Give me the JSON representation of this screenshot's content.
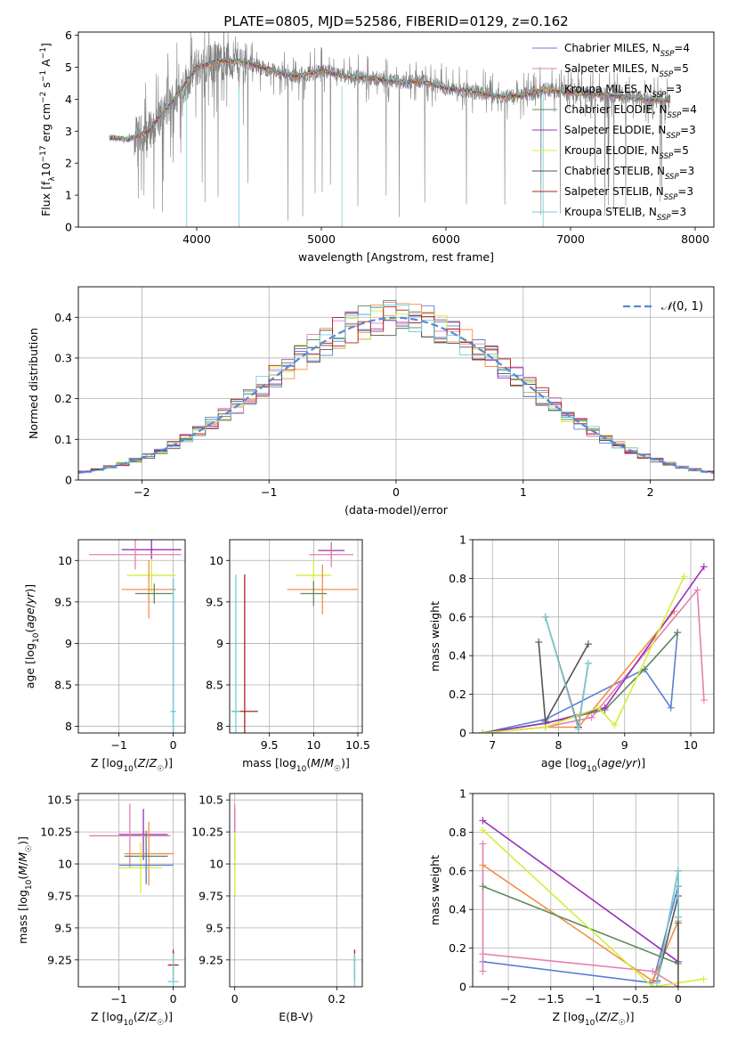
{
  "figure": {
    "title": "PLATE=0805, MJD=52586, FIBERID=0129, z=0.162"
  },
  "chart_data": [
    {
      "id": "spectrum",
      "type": "line",
      "xlabel": "wavelength [Angstrom, rest frame]",
      "ylabel": "Flux [f_λ 10^-17 erg cm^-2 s^-1 A^-1]",
      "xlim": [
        3050,
        8150
      ],
      "ylim": [
        0,
        6.1
      ],
      "xticks": [
        4000,
        5000,
        6000,
        7000,
        8000
      ],
      "yticks": [
        0,
        1,
        2,
        3,
        4,
        5,
        6
      ],
      "grid": false,
      "legend_position": "top-right",
      "data_envelope": {
        "x": [
          3300,
          3450,
          3600,
          3800,
          4000,
          4200,
          4400,
          4600,
          4800,
          5000,
          5200,
          5400,
          5600,
          5800,
          6000,
          6200,
          6400,
          6600,
          6800,
          7000,
          7200,
          7400,
          7600,
          7800
        ],
        "y": [
          2.8,
          2.75,
          2.95,
          3.9,
          5.0,
          5.2,
          5.15,
          4.9,
          4.7,
          4.9,
          4.7,
          4.65,
          4.55,
          4.55,
          4.35,
          4.25,
          4.1,
          4.1,
          4.3,
          4.2,
          4.15,
          4.1,
          4.0,
          3.95
        ]
      },
      "series": [
        {
          "name": "Chabrier MILES, N_SSP=4",
          "color": "#5b7fd6"
        },
        {
          "name": "Salpeter MILES, N_SSP=5",
          "color": "#e57fb0"
        },
        {
          "name": "Kroupa MILES, N_SSP=3",
          "color": "#f58d4a"
        },
        {
          "name": "Chabrier ELODIE, N_SSP=4",
          "color": "#5f8a5f"
        },
        {
          "name": "Salpeter ELODIE, N_SSP=3",
          "color": "#9b30b5"
        },
        {
          "name": "Kroupa ELODIE, N_SSP=5",
          "color": "#d4ee3a"
        },
        {
          "name": "Chabrier STELIB, N_SSP=3",
          "color": "#555555"
        },
        {
          "name": "Salpeter STELIB, N_SSP=3",
          "color": "#b22020"
        },
        {
          "name": "Kroupa STELIB, N_SSP=3",
          "color": "#6fd0d8"
        }
      ],
      "data_color": "#808080"
    },
    {
      "id": "residuals",
      "type": "histogram",
      "xlabel": "(data-model)/error",
      "ylabel": "Normed distribution",
      "xlim": [
        -2.5,
        2.5
      ],
      "ylim": [
        0,
        0.475
      ],
      "xticks": [
        -2,
        -1,
        0,
        1,
        2
      ],
      "yticks": [
        0.0,
        0.1,
        0.2,
        0.3,
        0.4
      ],
      "grid": true,
      "legend_position": "top-right",
      "reference_curve": {
        "name": "N(0,1)",
        "color": "#5b87d6",
        "style": "dashed"
      },
      "bins": {
        "start": -2.5,
        "width": 0.1,
        "count": 50
      },
      "series_colors": [
        "#5b7fd6",
        "#e57fb0",
        "#f58d4a",
        "#5f8a5f",
        "#9b30b5",
        "#d4ee3a",
        "#555555",
        "#b22020",
        "#6fd0d8"
      ]
    },
    {
      "id": "age-vs-Z",
      "type": "errorbar",
      "xlabel": "Z [log10(Z/Z☉)]",
      "ylabel": "age [log10(age/yr)]",
      "xlim": [
        -1.75,
        0.22
      ],
      "ylim": [
        7.92,
        10.25
      ],
      "xticks": [
        -1,
        0
      ],
      "yticks": [
        8.0,
        8.5,
        9.0,
        9.5,
        10.0
      ],
      "grid": true,
      "points": [
        {
          "x": -0.4,
          "xerr": 0.55,
          "y": 10.13,
          "yerr": 0.12,
          "color": "#9b30b5"
        },
        {
          "x": -0.7,
          "xerr": 0.85,
          "y": 10.07,
          "yerr": 0.18,
          "color": "#e57fb0"
        },
        {
          "x": -0.4,
          "xerr": 0.45,
          "y": 9.82,
          "yerr": 0.2,
          "color": "#d4ee3a"
        },
        {
          "x": -0.45,
          "xerr": 0.5,
          "y": 9.65,
          "yerr": 0.35,
          "color": "#f58d4a"
        },
        {
          "x": -0.35,
          "xerr": 0.35,
          "y": 9.6,
          "yerr": 0.12,
          "color": "#5f8a5f"
        },
        {
          "x": 0.0,
          "xerr": 0.04,
          "y": 8.18,
          "yerr": 1.6,
          "color": "#5b7fd6"
        },
        {
          "x": 0.0,
          "xerr": 0.05,
          "y": 8.18,
          "yerr": 1.6,
          "color": "#6fd0d8"
        }
      ]
    },
    {
      "id": "age-vs-mass",
      "type": "errorbar",
      "xlabel": "mass [log10(M/M☉)]",
      "ylabel": "",
      "xlim": [
        9.05,
        10.55
      ],
      "ylim": [
        7.92,
        10.25
      ],
      "xticks": [
        9.5,
        10.0,
        10.5
      ],
      "yticks": [
        8.0,
        8.5,
        9.0,
        9.5,
        10.0
      ],
      "grid": true,
      "points": [
        {
          "x": 10.2,
          "xerr": 0.15,
          "y": 10.12,
          "yerr": 0.1,
          "color": "#9b30b5"
        },
        {
          "x": 10.2,
          "xerr": 0.25,
          "y": 10.07,
          "yerr": 0.15,
          "color": "#e57fb0"
        },
        {
          "x": 10.0,
          "xerr": 0.2,
          "y": 9.82,
          "yerr": 0.2,
          "color": "#d4ee3a"
        },
        {
          "x": 10.1,
          "xerr": 0.4,
          "y": 9.65,
          "yerr": 0.3,
          "color": "#f58d4a"
        },
        {
          "x": 10.0,
          "xerr": 0.15,
          "y": 9.6,
          "yerr": 0.15,
          "color": "#5f8a5f"
        },
        {
          "x": 9.22,
          "xerr": 0.15,
          "y": 8.18,
          "yerr": 1.65,
          "color": "#b22020"
        },
        {
          "x": 9.12,
          "xerr": 0.05,
          "y": 8.18,
          "yerr": 1.65,
          "color": "#6fd0d8"
        }
      ]
    },
    {
      "id": "weight-vs-age",
      "type": "line",
      "xlabel": "age [log10(age/yr)]",
      "ylabel": "mass weight",
      "xlim": [
        6.7,
        10.35
      ],
      "ylim": [
        0,
        1.0
      ],
      "xticks": [
        7,
        8,
        9,
        10
      ],
      "yticks": [
        0.0,
        0.2,
        0.4,
        0.6,
        0.8,
        1.0
      ],
      "grid": true,
      "series": [
        {
          "color": "#5b7fd6",
          "x": [
            6.85,
            7.8,
            9.3,
            9.7,
            9.8
          ],
          "y": [
            0.0,
            0.07,
            0.33,
            0.13,
            0.52
          ]
        },
        {
          "color": "#e57fb0",
          "x": [
            6.85,
            7.8,
            8.5,
            10.1,
            10.2
          ],
          "y": [
            0.0,
            0.03,
            0.08,
            0.74,
            0.17
          ]
        },
        {
          "color": "#f58d4a",
          "x": [
            6.85,
            7.8,
            8.3,
            9.75
          ],
          "y": [
            0.0,
            0.03,
            0.03,
            0.63
          ]
        },
        {
          "color": "#5f8a5f",
          "x": [
            6.85,
            7.8,
            8.7,
            9.3,
            9.8
          ],
          "y": [
            0.0,
            0.05,
            0.12,
            0.33,
            0.52
          ]
        },
        {
          "color": "#9b30b5",
          "x": [
            6.85,
            7.8,
            8.7,
            10.2
          ],
          "y": [
            0.0,
            0.05,
            0.13,
            0.86
          ]
        },
        {
          "color": "#d4ee3a",
          "x": [
            6.85,
            7.8,
            8.6,
            8.85,
            9.9
          ],
          "y": [
            0.0,
            0.03,
            0.13,
            0.04,
            0.81
          ]
        },
        {
          "color": "#555555",
          "x": [
            7.7,
            7.8,
            8.45
          ],
          "y": [
            0.47,
            0.06,
            0.46
          ]
        },
        {
          "color": "#b22020",
          "x": [
            7.8,
            8.3,
            8.45
          ],
          "y": [
            0.6,
            0.03,
            0.36
          ]
        },
        {
          "color": "#6fd0d8",
          "x": [
            7.8,
            8.3,
            8.45
          ],
          "y": [
            0.6,
            0.02,
            0.36
          ]
        }
      ]
    },
    {
      "id": "mass-vs-Z",
      "type": "errorbar",
      "xlabel": "Z [log10(Z/Z☉)]",
      "ylabel": "mass [log10(M/M☉)]",
      "xlim": [
        -1.75,
        0.22
      ],
      "ylim": [
        9.04,
        10.55
      ],
      "xticks": [
        -1,
        0
      ],
      "yticks": [
        9.25,
        9.5,
        9.75,
        10.0,
        10.25,
        10.5
      ],
      "grid": true,
      "points": [
        {
          "x": -0.55,
          "xerr": 0.45,
          "y": 10.23,
          "yerr": 0.2,
          "color": "#9b30b5"
        },
        {
          "x": -0.8,
          "xerr": 0.75,
          "y": 10.22,
          "yerr": 0.25,
          "color": "#e57fb0"
        },
        {
          "x": -0.45,
          "xerr": 0.45,
          "y": 10.08,
          "yerr": 0.25,
          "color": "#f58d4a"
        },
        {
          "x": -0.5,
          "xerr": 0.4,
          "y": 10.06,
          "yerr": 0.2,
          "color": "#5f8a5f"
        },
        {
          "x": -0.6,
          "xerr": 0.4,
          "y": 9.97,
          "yerr": 0.2,
          "color": "#d4ee3a"
        },
        {
          "x": -0.5,
          "xerr": 0.5,
          "y": 9.99,
          "yerr": 0.15,
          "color": "#5b7fd6"
        },
        {
          "x": 0.0,
          "xerr": 0.1,
          "y": 9.21,
          "yerr": 0.12,
          "color": "#b22020"
        },
        {
          "x": 0.0,
          "xerr": 0.1,
          "y": 9.08,
          "yerr": 0.22,
          "color": "#6fd0d8"
        }
      ]
    },
    {
      "id": "mass-vs-EBV",
      "type": "errorbar",
      "xlabel": "E(B-V)",
      "ylabel": "",
      "xlim": [
        -0.01,
        0.25
      ],
      "ylim": [
        9.04,
        10.55
      ],
      "xticks": [
        0.0,
        0.2
      ],
      "yticks": [
        9.25,
        9.5,
        9.75,
        10.0,
        10.25,
        10.5
      ],
      "grid": true,
      "points": [
        {
          "x": 0.0,
          "xerr": 0.0,
          "y": 10.23,
          "yerr": 0.2,
          "color": "#9b30b5"
        },
        {
          "x": 0.0,
          "xerr": 0.0,
          "y": 10.22,
          "yerr": 0.25,
          "color": "#e57fb0"
        },
        {
          "x": 0.0,
          "xerr": 0.0,
          "y": 10.0,
          "yerr": 0.25,
          "color": "#d4ee3a"
        },
        {
          "x": 0.235,
          "xerr": 0.0,
          "y": 9.21,
          "yerr": 0.12,
          "color": "#b22020"
        },
        {
          "x": 0.235,
          "xerr": 0.0,
          "y": 9.08,
          "yerr": 0.22,
          "color": "#6fd0d8"
        }
      ]
    },
    {
      "id": "weight-vs-Z",
      "type": "line",
      "xlabel": "Z [log10(Z/Z☉)]",
      "ylabel": "mass weight",
      "xlim": [
        -2.42,
        0.42
      ],
      "ylim": [
        0,
        1.0
      ],
      "xticks": [
        -2.0,
        -1.5,
        -1.0,
        -0.5,
        0.0
      ],
      "yticks": [
        0.0,
        0.2,
        0.4,
        0.6,
        0.8,
        1.0
      ],
      "grid": true,
      "series": [
        {
          "color": "#5b7fd6",
          "x": [
            -2.3,
            -0.3,
            0.0
          ],
          "y": [
            0.13,
            0.02,
            0.52
          ]
        },
        {
          "color": "#e57fb0",
          "x": [
            -2.3,
            -2.3,
            -2.3,
            -0.3,
            0.0
          ],
          "y": [
            0.74,
            0.08,
            0.17,
            0.08,
            0.0
          ]
        },
        {
          "color": "#f58d4a",
          "x": [
            -2.3,
            -0.3,
            0.0
          ],
          "y": [
            0.63,
            0.03,
            0.34
          ]
        },
        {
          "color": "#5f8a5f",
          "x": [
            -2.3,
            0.0,
            0.0
          ],
          "y": [
            0.52,
            0.12,
            0.33
          ]
        },
        {
          "color": "#9b30b5",
          "x": [
            -2.3,
            0.0
          ],
          "y": [
            0.86,
            0.13
          ]
        },
        {
          "color": "#d4ee3a",
          "x": [
            -2.3,
            -0.3,
            0.3
          ],
          "y": [
            0.81,
            0.0,
            0.04
          ]
        },
        {
          "color": "#555555",
          "x": [
            -0.25,
            0.0,
            0.0
          ],
          "y": [
            0.03,
            0.47,
            0.0
          ]
        },
        {
          "color": "#b22020",
          "x": [
            -0.25,
            0.0,
            0.0
          ],
          "y": [
            0.03,
            0.6,
            0.36
          ]
        },
        {
          "color": "#6fd0d8",
          "x": [
            -0.25,
            0.0,
            0.0
          ],
          "y": [
            0.02,
            0.6,
            0.36
          ]
        }
      ]
    }
  ]
}
